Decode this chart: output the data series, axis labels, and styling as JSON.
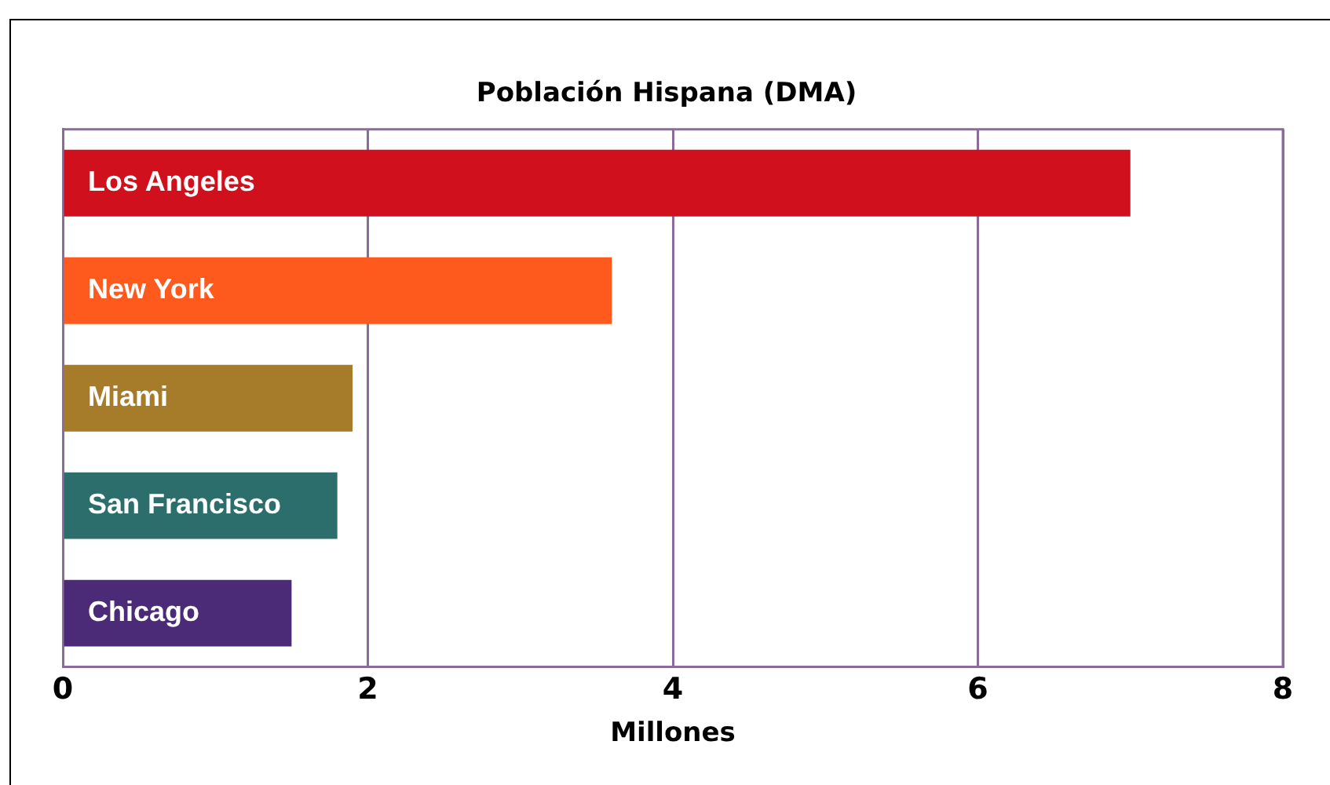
{
  "chart_data": {
    "type": "bar",
    "orientation": "horizontal",
    "title": "Población Hispana (DMA)",
    "xlabel": "Millones",
    "categories": [
      "Los Angeles",
      "New York",
      "Miami",
      "San Francisco",
      "Chicago"
    ],
    "values": [
      7.0,
      3.6,
      1.9,
      1.8,
      1.5
    ],
    "colors": [
      "#d0101c",
      "#ff5a1e",
      "#a67c2a",
      "#2c6e6c",
      "#4b2a78"
    ],
    "xlim": [
      0,
      8
    ],
    "xticks": [
      0,
      2,
      4,
      6,
      8
    ],
    "grid": "x"
  }
}
